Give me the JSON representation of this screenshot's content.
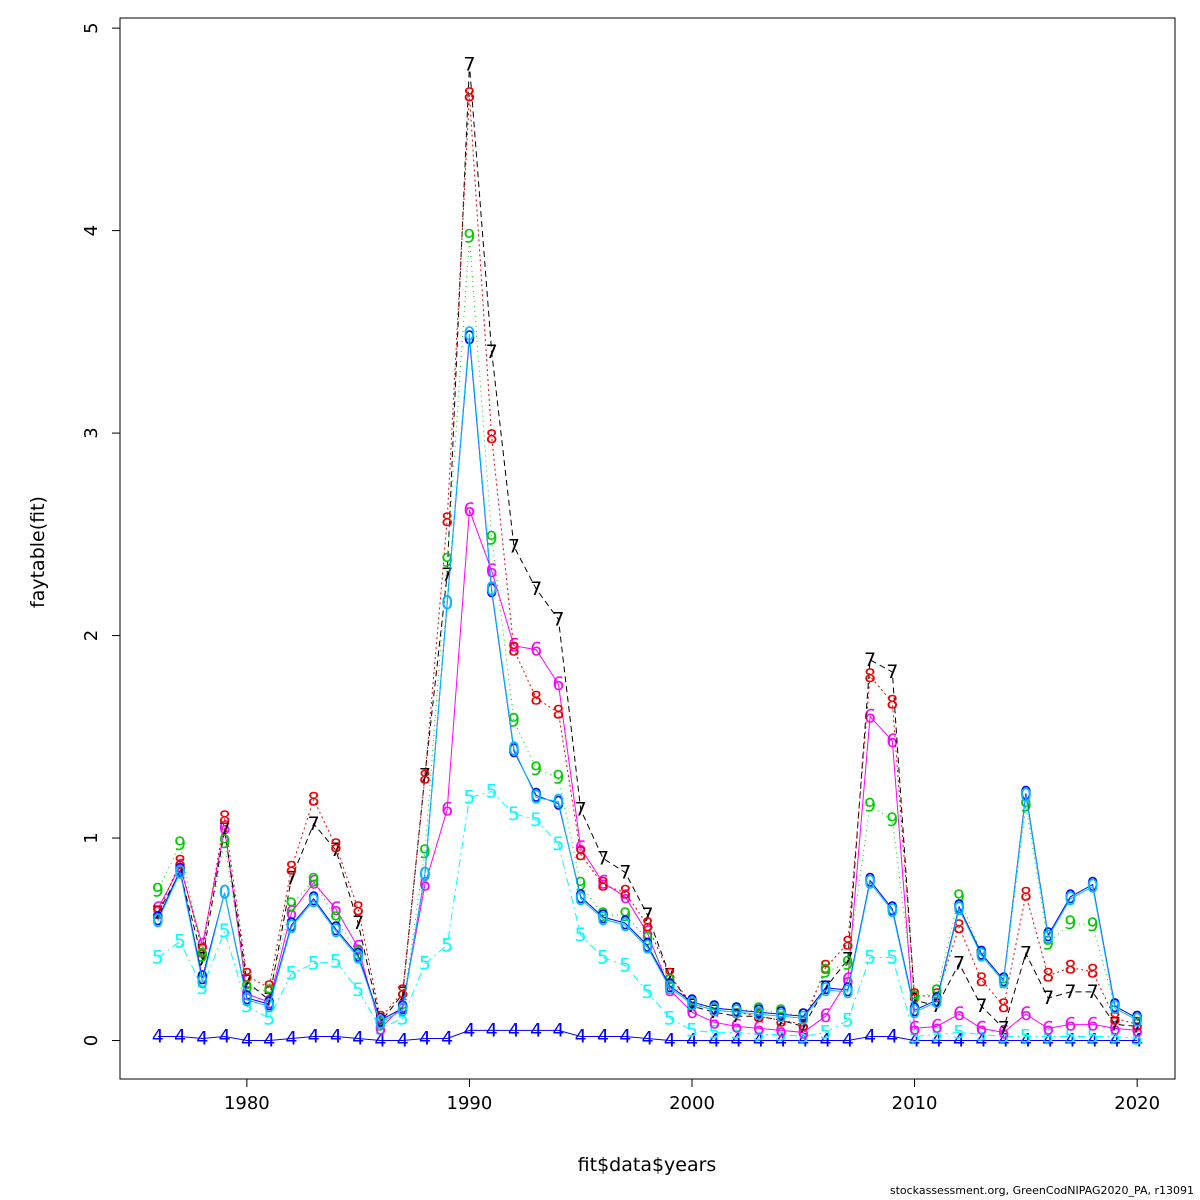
{
  "footer": "stockassessment.org, GreenCodNIPAG2020_PA, r13091",
  "chart_data": {
    "type": "line",
    "title": "",
    "xlabel": "fit$data$years",
    "ylabel": "faytable(fit)",
    "xlim": [
      1974.3,
      2021.7
    ],
    "ylim": [
      -0.19,
      5.05
    ],
    "xticks": [
      1980,
      1990,
      2000,
      2010,
      2020
    ],
    "yticks": [
      0,
      1,
      2,
      3,
      4,
      5
    ],
    "grid": false,
    "legend": "none",
    "x": [
      1976,
      1977,
      1978,
      1979,
      1980,
      1981,
      1982,
      1983,
      1984,
      1985,
      1986,
      1987,
      1988,
      1989,
      1990,
      1991,
      1992,
      1993,
      1994,
      1995,
      1996,
      1997,
      1998,
      1999,
      2000,
      2001,
      2002,
      2003,
      2004,
      2005,
      2006,
      2007,
      2008,
      2009,
      2010,
      2011,
      2012,
      2013,
      2014,
      2015,
      2016,
      2017,
      2018,
      2019,
      2020
    ],
    "series": [
      {
        "marker": "4",
        "color": "#0000ff",
        "dash": "",
        "values": [
          0.02,
          0.02,
          0.01,
          0.02,
          0.0,
          0.0,
          0.01,
          0.02,
          0.02,
          0.01,
          0.0,
          0.0,
          0.01,
          0.01,
          0.05,
          0.05,
          0.05,
          0.05,
          0.05,
          0.02,
          0.02,
          0.02,
          0.01,
          0.0,
          0.0,
          0.0,
          0.0,
          0.0,
          0.0,
          0.0,
          0.0,
          0.0,
          0.02,
          0.02,
          0.0,
          0.0,
          0.0,
          0.0,
          0.0,
          0.0,
          0.0,
          0.0,
          0.0,
          0.0,
          0.0
        ]
      },
      {
        "marker": "5",
        "color": "#00ffff",
        "dash": "8 4 2 4",
        "values": [
          0.41,
          0.49,
          0.26,
          0.54,
          0.17,
          0.11,
          0.33,
          0.38,
          0.39,
          0.25,
          0.06,
          0.11,
          0.38,
          0.47,
          1.2,
          1.23,
          1.12,
          1.09,
          0.97,
          0.52,
          0.41,
          0.37,
          0.24,
          0.11,
          0.05,
          0.04,
          0.04,
          0.03,
          0.03,
          0.02,
          0.04,
          0.1,
          0.41,
          0.41,
          0.02,
          0.03,
          0.04,
          0.03,
          0.02,
          0.02,
          0.02,
          0.02,
          0.02,
          0.02,
          0.01
        ]
      },
      {
        "marker": "6",
        "color": "#ff00ff",
        "dash": "",
        "values": [
          0.65,
          0.86,
          0.47,
          1.05,
          0.23,
          0.19,
          0.63,
          0.78,
          0.65,
          0.46,
          0.06,
          0.17,
          0.77,
          1.14,
          2.62,
          2.32,
          1.95,
          1.93,
          1.76,
          0.95,
          0.78,
          0.71,
          0.53,
          0.25,
          0.14,
          0.09,
          0.07,
          0.06,
          0.05,
          0.04,
          0.12,
          0.3,
          1.6,
          1.48,
          0.06,
          0.07,
          0.13,
          0.06,
          0.04,
          0.13,
          0.06,
          0.08,
          0.08,
          0.06,
          0.05
        ]
      },
      {
        "marker": "7",
        "color": "#000000",
        "dash": "6 4",
        "values": [
          0.63,
          0.83,
          0.4,
          1.04,
          0.29,
          0.2,
          0.8,
          1.07,
          0.94,
          0.58,
          0.09,
          0.23,
          1.31,
          2.3,
          4.82,
          3.4,
          2.44,
          2.23,
          2.08,
          1.14,
          0.9,
          0.83,
          0.62,
          0.32,
          0.17,
          0.14,
          0.12,
          0.12,
          0.1,
          0.07,
          0.26,
          0.4,
          1.88,
          1.82,
          0.2,
          0.17,
          0.38,
          0.17,
          0.06,
          0.43,
          0.21,
          0.24,
          0.24,
          0.08,
          0.07
        ]
      },
      {
        "marker": "8",
        "color": "#ee0000",
        "dash": "2 3",
        "values": [
          0.63,
          0.88,
          0.44,
          1.1,
          0.32,
          0.26,
          0.85,
          1.19,
          0.96,
          0.65,
          0.11,
          0.24,
          1.3,
          2.57,
          4.67,
          2.98,
          1.93,
          1.69,
          1.62,
          0.92,
          0.77,
          0.73,
          0.57,
          0.32,
          0.18,
          0.15,
          0.14,
          0.12,
          0.1,
          0.08,
          0.36,
          0.48,
          1.8,
          1.67,
          0.22,
          0.22,
          0.56,
          0.3,
          0.17,
          0.72,
          0.32,
          0.36,
          0.34,
          0.11,
          0.08
        ]
      },
      {
        "marker": "9",
        "color": "#00cc00",
        "dash": "1 4",
        "values": [
          0.74,
          0.97,
          0.42,
          0.98,
          0.26,
          0.24,
          0.67,
          0.79,
          0.6,
          0.43,
          0.08,
          0.16,
          0.93,
          2.37,
          3.97,
          2.48,
          1.58,
          1.34,
          1.3,
          0.77,
          0.62,
          0.62,
          0.5,
          0.29,
          0.18,
          0.16,
          0.15,
          0.15,
          0.14,
          0.12,
          0.34,
          0.38,
          1.16,
          1.09,
          0.21,
          0.24,
          0.71,
          0.43,
          0.29,
          1.16,
          0.48,
          0.58,
          0.57,
          0.17,
          0.11
        ]
      },
      {
        "marker": "0",
        "color": "#0000ff",
        "dash": "",
        "values": [
          0.6,
          0.84,
          0.31,
          0.73,
          0.21,
          0.18,
          0.57,
          0.7,
          0.55,
          0.42,
          0.1,
          0.16,
          0.82,
          2.16,
          3.47,
          2.22,
          1.43,
          1.21,
          1.17,
          0.71,
          0.61,
          0.58,
          0.47,
          0.27,
          0.19,
          0.16,
          0.15,
          0.14,
          0.13,
          0.12,
          0.26,
          0.25,
          0.79,
          0.65,
          0.15,
          0.2,
          0.66,
          0.43,
          0.3,
          1.22,
          0.52,
          0.71,
          0.77,
          0.17,
          0.11
        ]
      },
      {
        "marker": "0",
        "color": "#00bfff",
        "dash": "",
        "values": [
          0.59,
          0.83,
          0.29,
          0.73,
          0.2,
          0.17,
          0.56,
          0.69,
          0.54,
          0.41,
          0.09,
          0.15,
          0.82,
          2.16,
          3.49,
          2.23,
          1.44,
          1.2,
          1.18,
          0.7,
          0.6,
          0.57,
          0.46,
          0.26,
          0.18,
          0.15,
          0.14,
          0.13,
          0.12,
          0.11,
          0.25,
          0.24,
          0.78,
          0.64,
          0.14,
          0.19,
          0.65,
          0.42,
          0.29,
          1.21,
          0.51,
          0.7,
          0.76,
          0.16,
          0.1
        ]
      }
    ]
  }
}
